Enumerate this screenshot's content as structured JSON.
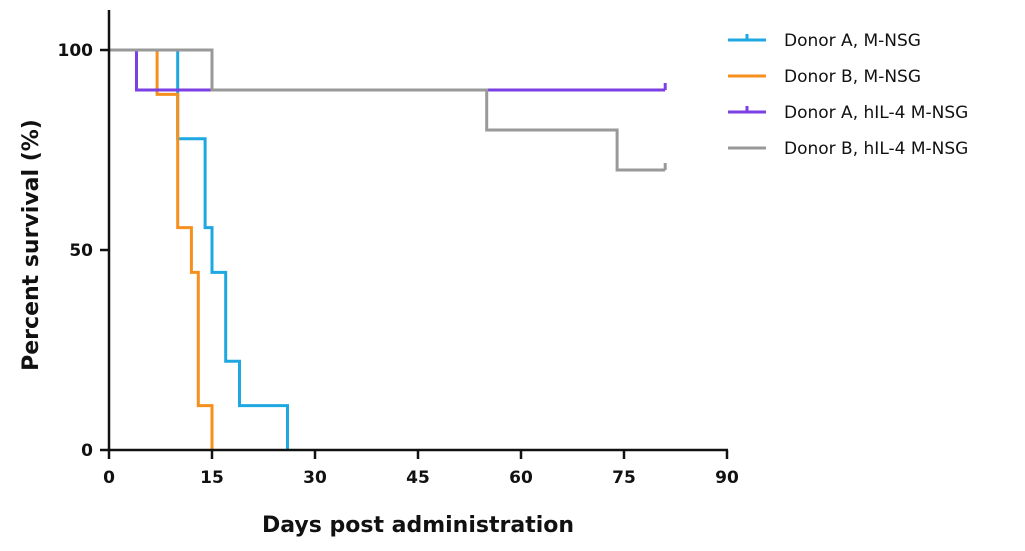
{
  "chart_data": {
    "type": "line",
    "title": "",
    "xlabel": "Days post administration",
    "ylabel": "Percent survival (%)",
    "xlim": [
      0,
      90
    ],
    "ylim": [
      0,
      100
    ],
    "x_ticks": [
      0,
      15,
      30,
      45,
      60,
      75,
      90
    ],
    "y_ticks": [
      0,
      50,
      100
    ],
    "grid": false,
    "legend_position": "top-right",
    "step": true,
    "series": [
      {
        "name": "Donor A, M-NSG",
        "color": "#1ea7e1",
        "points": [
          [
            0,
            100
          ],
          [
            10,
            100
          ],
          [
            10,
            77.8
          ],
          [
            14,
            77.8
          ],
          [
            14,
            55.6
          ],
          [
            15,
            55.6
          ],
          [
            15,
            44.4
          ],
          [
            17,
            44.4
          ],
          [
            17,
            22.2
          ],
          [
            19,
            22.2
          ],
          [
            19,
            11.1
          ],
          [
            26,
            11.1
          ],
          [
            26,
            0
          ]
        ]
      },
      {
        "name": "Donor B, M-NSG",
        "color": "#f5901e",
        "points": [
          [
            0,
            100
          ],
          [
            7,
            100
          ],
          [
            7,
            88.9
          ],
          [
            10,
            88.9
          ],
          [
            10,
            55.6
          ],
          [
            12,
            55.6
          ],
          [
            12,
            44.4
          ],
          [
            13,
            44.4
          ],
          [
            13,
            11.1
          ],
          [
            15,
            11.1
          ],
          [
            15,
            0
          ]
        ]
      },
      {
        "name": "Donor A, hIL-4 M-NSG",
        "color": "#7b3fe4",
        "points": [
          [
            0,
            100
          ],
          [
            4,
            100
          ],
          [
            4,
            90
          ],
          [
            81,
            90
          ]
        ]
      },
      {
        "name": "Donor B, hIL-4 M-NSG",
        "color": "#999999",
        "points": [
          [
            0,
            100
          ],
          [
            15,
            100
          ],
          [
            15,
            90
          ],
          [
            55,
            90
          ],
          [
            55,
            80
          ],
          [
            74,
            80
          ],
          [
            74,
            70
          ],
          [
            81,
            70
          ]
        ]
      }
    ]
  }
}
